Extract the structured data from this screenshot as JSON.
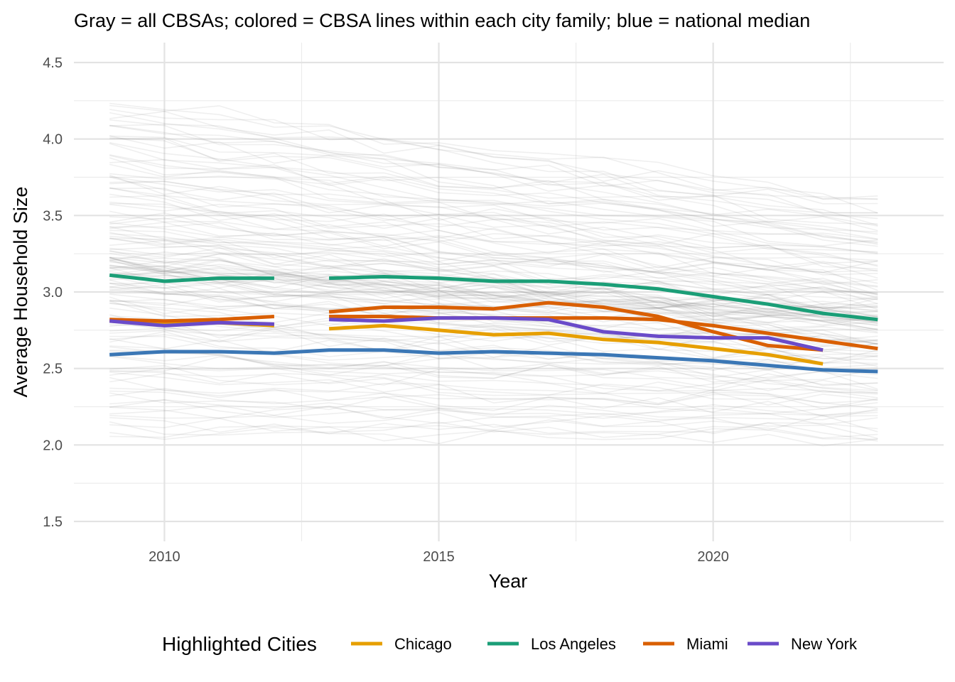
{
  "chart_data": {
    "type": "line",
    "subtitle": "Gray = all CBSAs; colored = CBSA lines within each city family; blue = national median",
    "xlabel": "Year",
    "ylabel": "Average Household Size",
    "xlim": [
      2008.35,
      2024.2
    ],
    "ylim": [
      1.37,
      4.63
    ],
    "x_ticks": [
      2010,
      2015,
      2020
    ],
    "x_tick_labels": [
      "2010",
      "2015",
      "2020"
    ],
    "y_ticks": [
      1.5,
      2.0,
      2.5,
      3.0,
      3.5,
      4.0,
      4.5
    ],
    "y_tick_labels": [
      "1.5",
      "2.0",
      "2.5",
      "3.0",
      "3.5",
      "4.0",
      "4.5"
    ],
    "grid": true,
    "legend": {
      "title": "Highlighted Cities",
      "position": "bottom",
      "entries": [
        {
          "label": "Chicago",
          "color": "#E69F00"
        },
        {
          "label": "Los Angeles",
          "color": "#1B9E77"
        },
        {
          "label": "Miami",
          "color": "#D95F02"
        },
        {
          "label": "New York",
          "color": "#6A4BC9"
        }
      ]
    },
    "background_series": {
      "color": "#808080",
      "count": 140,
      "years": [
        2009,
        2010,
        2011,
        2012,
        2013,
        2014,
        2015,
        2016,
        2017,
        2018,
        2019,
        2020,
        2021,
        2022,
        2023
      ],
      "range_start": [
        2.05,
        4.27
      ],
      "range_end": [
        2.02,
        3.62
      ]
    },
    "series": [
      {
        "name": "Chicago",
        "color": "#E69F00",
        "segments": [
          [
            [
              2009,
              2.81
            ],
            [
              2010,
              2.79
            ],
            [
              2011,
              2.8
            ],
            [
              2012,
              2.78
            ]
          ],
          [
            [
              2013,
              2.76
            ],
            [
              2014,
              2.78
            ],
            [
              2015,
              2.75
            ],
            [
              2016,
              2.72
            ],
            [
              2017,
              2.73
            ],
            [
              2018,
              2.69
            ],
            [
              2019,
              2.67
            ],
            [
              2020,
              2.63
            ],
            [
              2021,
              2.59
            ],
            [
              2022,
              2.53
            ]
          ]
        ]
      },
      {
        "name": "Los Angeles",
        "color": "#1B9E77",
        "segments": [
          [
            [
              2009,
              3.11
            ],
            [
              2010,
              3.07
            ],
            [
              2011,
              3.09
            ],
            [
              2012,
              3.09
            ]
          ],
          [
            [
              2013,
              3.09
            ],
            [
              2014,
              3.1
            ],
            [
              2015,
              3.09
            ],
            [
              2016,
              3.07
            ],
            [
              2017,
              3.07
            ],
            [
              2018,
              3.05
            ],
            [
              2019,
              3.02
            ],
            [
              2020,
              2.97
            ],
            [
              2021,
              2.92
            ],
            [
              2022,
              2.86
            ],
            [
              2023,
              2.82
            ]
          ]
        ]
      },
      {
        "name": "Miami (metro A)",
        "color": "#D95F02",
        "segments": [
          [
            [
              2009,
              2.82
            ],
            [
              2010,
              2.81
            ],
            [
              2011,
              2.82
            ],
            [
              2012,
              2.84
            ]
          ],
          [
            [
              2013,
              2.84
            ],
            [
              2014,
              2.84
            ],
            [
              2015,
              2.83
            ],
            [
              2016,
              2.83
            ],
            [
              2017,
              2.83
            ],
            [
              2018,
              2.83
            ],
            [
              2019,
              2.82
            ],
            [
              2020,
              2.78
            ],
            [
              2021,
              2.73
            ],
            [
              2022,
              2.68
            ],
            [
              2023,
              2.63
            ]
          ]
        ]
      },
      {
        "name": "Miami (metro B)",
        "color": "#D95F02",
        "segments": [
          [
            [
              2013,
              2.87
            ],
            [
              2014,
              2.9
            ],
            [
              2015,
              2.9
            ],
            [
              2016,
              2.89
            ],
            [
              2017,
              2.93
            ],
            [
              2018,
              2.9
            ],
            [
              2019,
              2.84
            ],
            [
              2020,
              2.74
            ],
            [
              2021,
              2.65
            ],
            [
              2022,
              2.62
            ]
          ]
        ]
      },
      {
        "name": "New York",
        "color": "#6A4BC9",
        "segments": [
          [
            [
              2009,
              2.81
            ],
            [
              2010,
              2.78
            ],
            [
              2011,
              2.8
            ],
            [
              2012,
              2.79
            ]
          ],
          [
            [
              2013,
              2.82
            ],
            [
              2014,
              2.81
            ],
            [
              2015,
              2.83
            ],
            [
              2016,
              2.83
            ],
            [
              2017,
              2.82
            ],
            [
              2018,
              2.74
            ],
            [
              2019,
              2.71
            ],
            [
              2020,
              2.7
            ],
            [
              2021,
              2.7
            ],
            [
              2022,
              2.62
            ]
          ]
        ]
      },
      {
        "name": "National median",
        "color": "#3B77B5",
        "segments": [
          [
            [
              2009,
              2.59
            ],
            [
              2010,
              2.61
            ],
            [
              2011,
              2.61
            ],
            [
              2012,
              2.6
            ],
            [
              2013,
              2.62
            ],
            [
              2014,
              2.62
            ],
            [
              2015,
              2.6
            ],
            [
              2016,
              2.61
            ],
            [
              2017,
              2.6
            ],
            [
              2018,
              2.59
            ],
            [
              2019,
              2.57
            ],
            [
              2020,
              2.55
            ],
            [
              2021,
              2.52
            ],
            [
              2022,
              2.49
            ],
            [
              2023,
              2.48
            ]
          ]
        ]
      }
    ]
  }
}
